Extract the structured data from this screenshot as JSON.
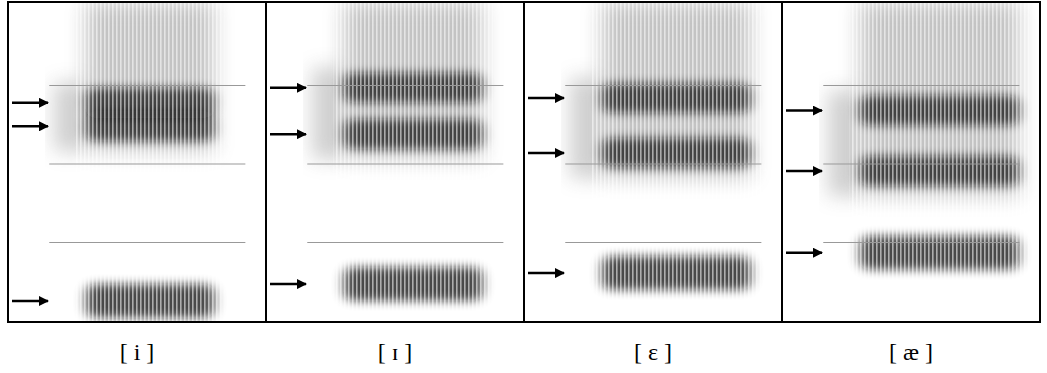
{
  "chart_data": {
    "type": "spectrogram",
    "categories": [
      "[ i ]",
      "[ ɪ ]",
      "[ ɛ ]",
      "[ æ ]"
    ],
    "formants": [
      [
        255,
        2480,
        2780
      ],
      [
        470,
        2380,
        2970
      ],
      [
        610,
        2140,
        2840
      ],
      [
        870,
        1910,
        2680
      ]
    ],
    "ylim": [
      0,
      4000
    ],
    "yticks": [
      1000,
      2000,
      3000
    ],
    "grid": true,
    "tick_labels": false
  }
}
